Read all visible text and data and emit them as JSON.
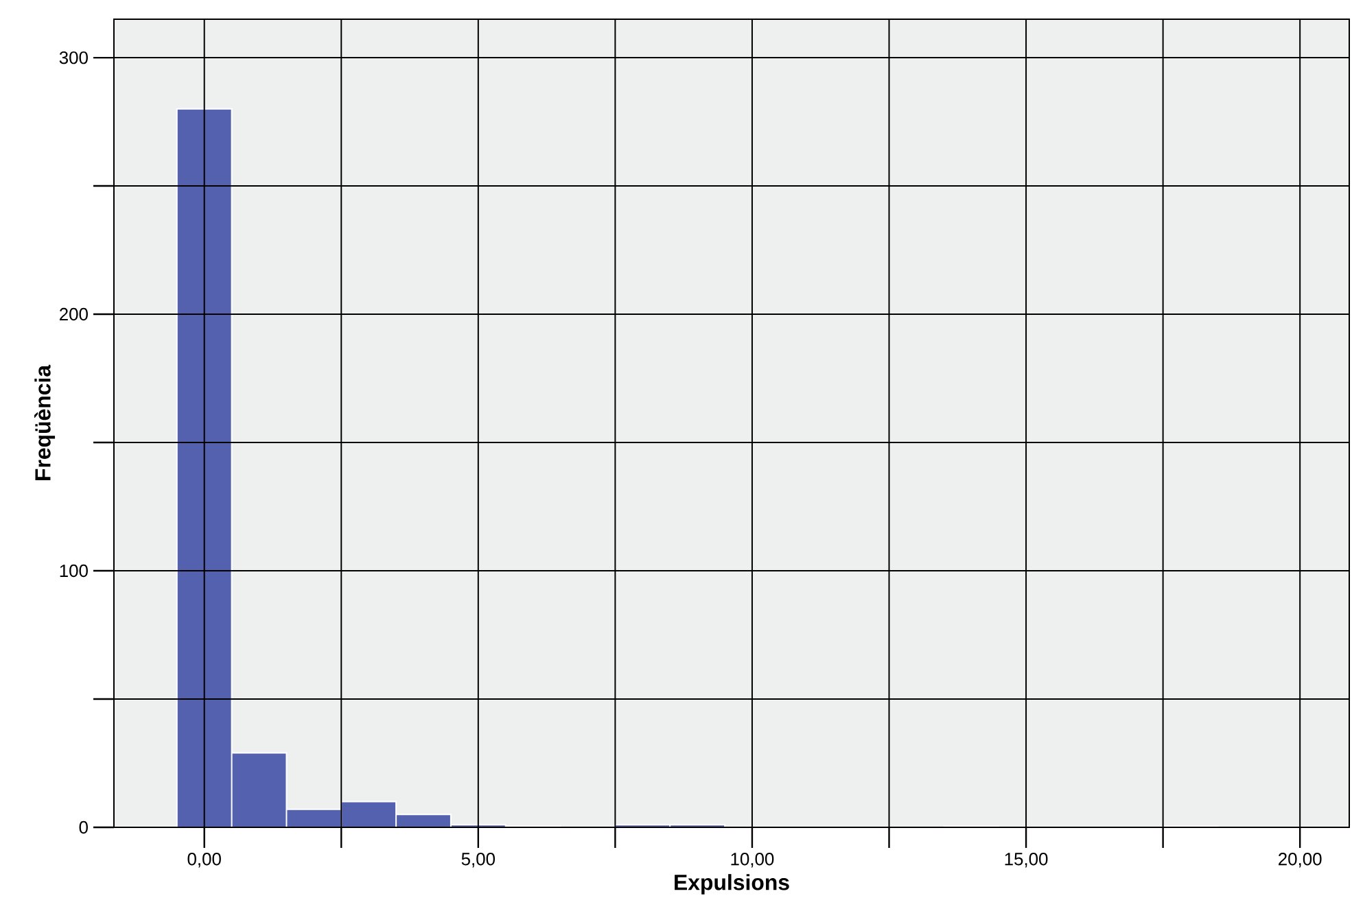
{
  "chart_data": {
    "type": "histogram",
    "xlabel": "Expulsions",
    "ylabel": "Freqüència",
    "bins": [
      -0.5,
      0.5,
      1.5,
      2.5,
      3.5,
      4.5,
      5.5,
      6.5,
      7.5,
      8.5,
      9.5,
      10.5,
      11.5,
      12.5,
      13.5,
      14.5,
      15.5,
      16.5,
      17.5,
      18.5
    ],
    "values": [
      280,
      29,
      7,
      10,
      5,
      1,
      0.4,
      0,
      1,
      1,
      0,
      0,
      0,
      0,
      0.4,
      0,
      0,
      0,
      0.4
    ],
    "color": "#5461ae",
    "xlim": [
      -1.65,
      20.9
    ],
    "ylim": [
      0,
      315
    ],
    "xticks": [
      {
        "value": 0,
        "label": "0,00"
      },
      {
        "value": 2.5,
        "label": null
      },
      {
        "value": 5,
        "label": "5,00"
      },
      {
        "value": 7.5,
        "label": null
      },
      {
        "value": 10,
        "label": "10,00"
      },
      {
        "value": 12.5,
        "label": null
      },
      {
        "value": 15,
        "label": "15,00"
      },
      {
        "value": 17.5,
        "label": null
      },
      {
        "value": 20,
        "label": "20,00"
      }
    ],
    "yticks": [
      0,
      {
        "value": 50,
        "label": null
      },
      100,
      {
        "value": 150,
        "label": null
      },
      200,
      {
        "value": 250,
        "label": null
      },
      300
    ],
    "grid": true
  }
}
